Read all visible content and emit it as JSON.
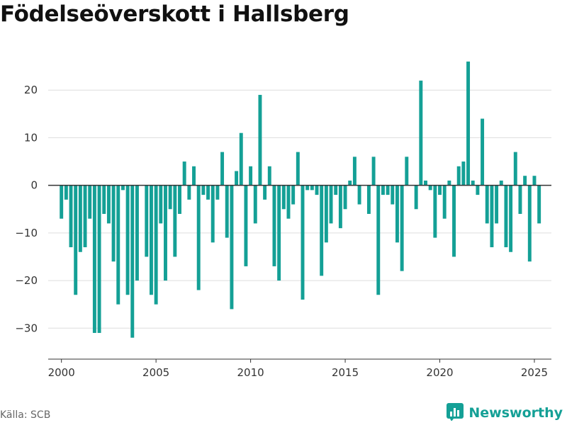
{
  "title": "Födelseöverskott i Hallsberg",
  "source": "Källa: SCB",
  "brand": {
    "name": "Newsworthy",
    "icon": "newsworthy-logo-icon",
    "color": "#14a096"
  },
  "colors": {
    "bar": "#14a096",
    "grid": "#dddddd",
    "zero_line": "#333333",
    "axis": "#333333"
  },
  "chart_data": {
    "type": "bar",
    "title": "Födelseöverskott i Hallsberg",
    "xlabel": "",
    "ylabel": "",
    "xlim": [
      1999.3,
      2025.9
    ],
    "ylim": [
      -36.5,
      30
    ],
    "grid": true,
    "yticks": [
      -30,
      -20,
      -10,
      0,
      10,
      20
    ],
    "xticks": [
      2000,
      2005,
      2010,
      2015,
      2020,
      2025
    ],
    "frequency": "quarterly",
    "start": "2000 Q1",
    "values": [
      -7,
      -3,
      -13,
      -23,
      -14,
      -13,
      -7,
      -31,
      -31,
      -6,
      -8,
      -16,
      -25,
      -1,
      -23,
      -32,
      -20,
      0,
      -15,
      -23,
      -25,
      -8,
      -20,
      -5,
      -15,
      -6,
      5,
      -3,
      4,
      -22,
      -2,
      -3,
      -12,
      -3,
      7,
      -11,
      -26,
      3,
      11,
      -17,
      4,
      -8,
      19,
      -3,
      4,
      -17,
      -20,
      -5,
      -7,
      -4,
      7,
      -24,
      -1,
      -1,
      -2,
      -19,
      -12,
      -8,
      -2,
      -9,
      -5,
      1,
      6,
      -4,
      0,
      -6,
      6,
      -23,
      -2,
      -2,
      -4,
      -12,
      -18,
      6,
      0,
      -5,
      22,
      1,
      -1,
      -11,
      -2,
      -7,
      1,
      -15,
      4,
      5,
      26,
      1,
      -2,
      14,
      -8,
      -13,
      -8,
      1,
      -13,
      -14,
      7,
      -6,
      2,
      -16,
      2,
      -8
    ]
  }
}
